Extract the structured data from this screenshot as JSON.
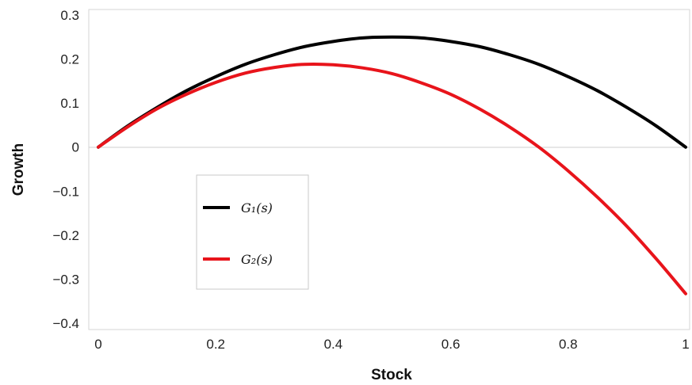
{
  "chart_data": {
    "type": "line",
    "title": "",
    "xlabel": "Stock",
    "ylabel": "Growth",
    "xlim": [
      0,
      1
    ],
    "ylim": [
      -0.4,
      0.3
    ],
    "x_ticks": [
      0,
      0.2,
      0.4,
      0.6,
      0.8,
      1
    ],
    "x_tick_labels": [
      "0",
      "0.2",
      "0.4",
      "0.6",
      "0.8",
      "1"
    ],
    "y_ticks": [
      0.3,
      0.2,
      0.1,
      0,
      -0.1,
      -0.2,
      -0.3,
      -0.4
    ],
    "y_tick_labels": [
      "0.3",
      "0.2",
      "0.1",
      "0",
      "−0.1",
      "−0.2",
      "−0.3",
      "−0.4"
    ],
    "grid": "horizontal line at y = 0",
    "legend_position": "lower-left",
    "series": [
      {
        "name": "G1(s)",
        "legend_label": "G₁(s)",
        "color": "#000000",
        "x": [
          0,
          0.05,
          0.1,
          0.15,
          0.2,
          0.25,
          0.3,
          0.35,
          0.4,
          0.45,
          0.5,
          0.55,
          0.6,
          0.65,
          0.7,
          0.75,
          0.8,
          0.85,
          0.9,
          0.95,
          1
        ],
        "y": [
          0,
          0.048,
          0.09,
          0.128,
          0.16,
          0.188,
          0.21,
          0.228,
          0.24,
          0.248,
          0.25,
          0.248,
          0.24,
          0.228,
          0.21,
          0.188,
          0.16,
          0.128,
          0.09,
          0.048,
          0
        ]
      },
      {
        "name": "G2(s)",
        "legend_label": "G₂(s)",
        "color": "#e8141b",
        "x": [
          0,
          0.05,
          0.1,
          0.15,
          0.2,
          0.25,
          0.3,
          0.35,
          0.4,
          0.45,
          0.5,
          0.55,
          0.6,
          0.65,
          0.7,
          0.75,
          0.8,
          0.85,
          0.9,
          0.95,
          1
        ],
        "y": [
          0,
          0.046,
          0.087,
          0.12,
          0.147,
          0.168,
          0.181,
          0.188,
          0.187,
          0.18,
          0.167,
          0.146,
          0.12,
          0.086,
          0.046,
          0,
          -0.054,
          -0.114,
          -0.18,
          -0.254,
          -0.333
        ]
      }
    ]
  }
}
